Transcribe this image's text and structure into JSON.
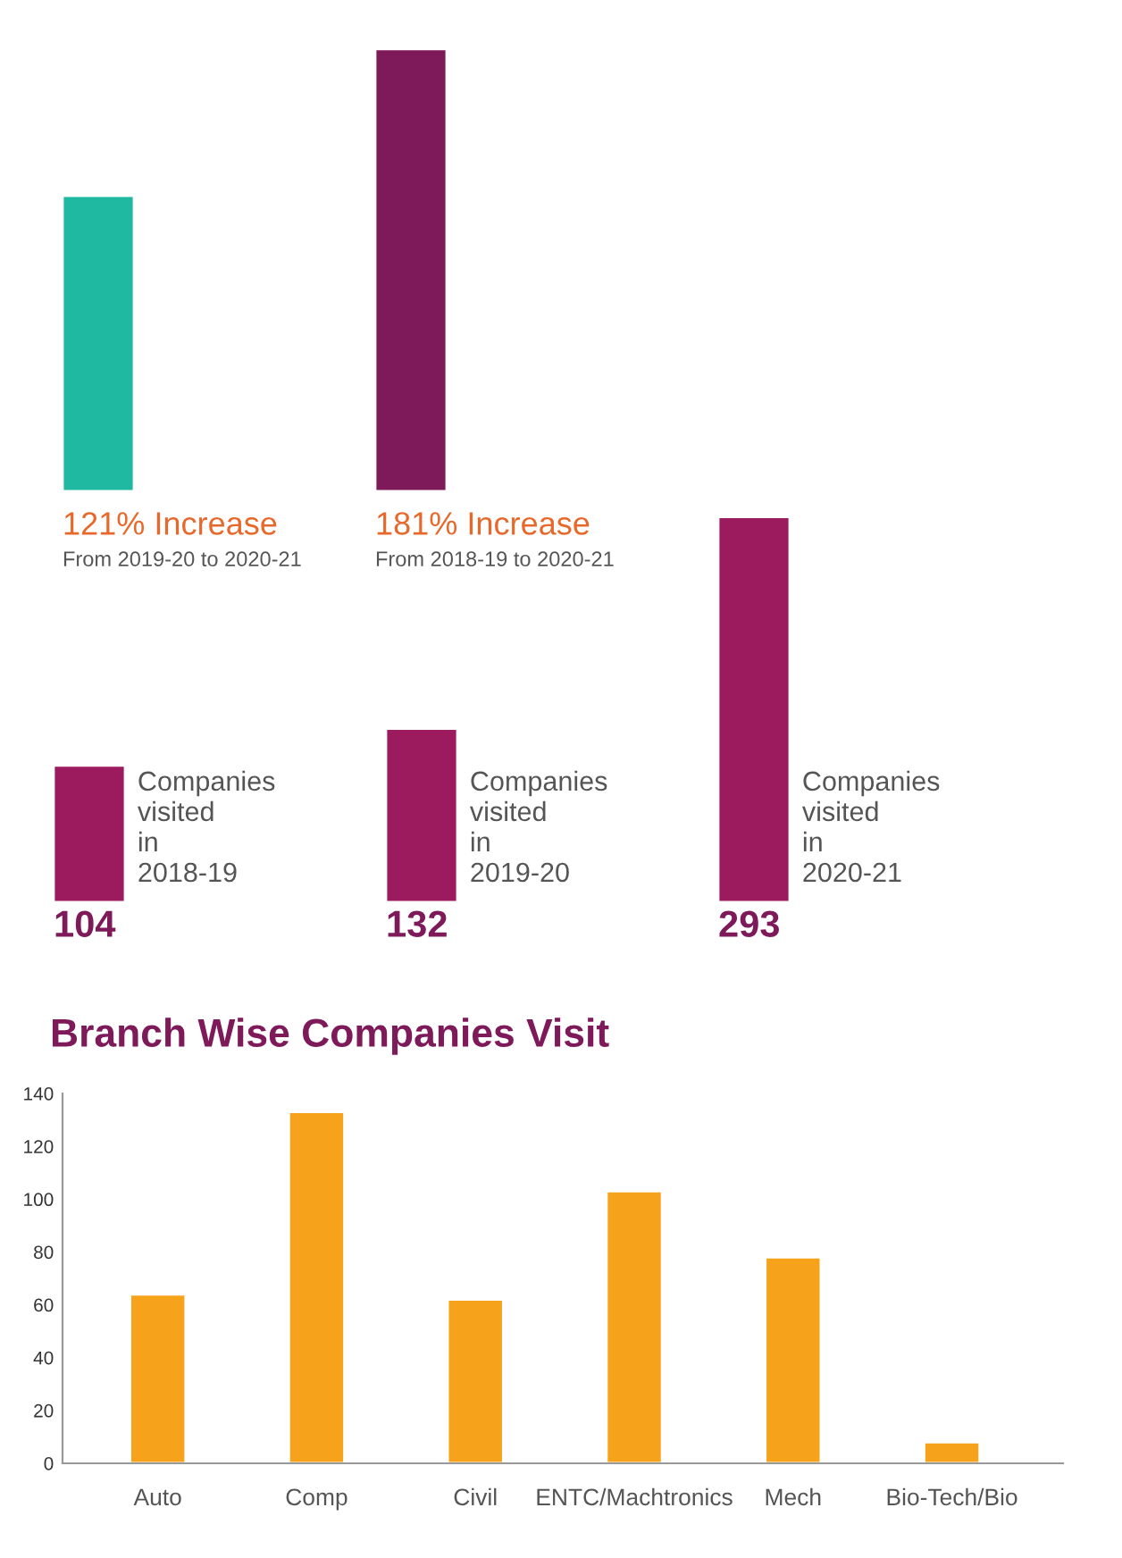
{
  "chart_data": [
    {
      "type": "bar",
      "categories": [
        "From 2019-20 to 2020-21",
        "From 2018-19 to 2020-21"
      ],
      "values": [
        121,
        181
      ],
      "colors": [
        "#1fb8a0",
        "#7e1a5a"
      ],
      "value_labels": [
        "121% Increase",
        "181% Increase"
      ]
    },
    {
      "type": "bar",
      "categories": [
        "Companies\nvisited\nin\n2018-19",
        "Companies\nvisited\nin\n2019-20",
        "Companies\nvisited\nin\n2020-21"
      ],
      "values": [
        104,
        132,
        293
      ],
      "color": "#9c1a5e",
      "data_labels": true
    },
    {
      "type": "bar",
      "title": "Branch Wise Companies Visit",
      "categories": [
        "Auto",
        "Comp",
        "Civil",
        "ENTC/Machtronics",
        "Mech",
        "Bio-Tech/Bio"
      ],
      "values": [
        64,
        133,
        62,
        103,
        78,
        8
      ],
      "color": "#f7a21b",
      "ylim": [
        0,
        140
      ],
      "yticks": [
        0,
        20,
        40,
        60,
        80,
        100,
        120,
        140
      ],
      "grid": false
    }
  ]
}
